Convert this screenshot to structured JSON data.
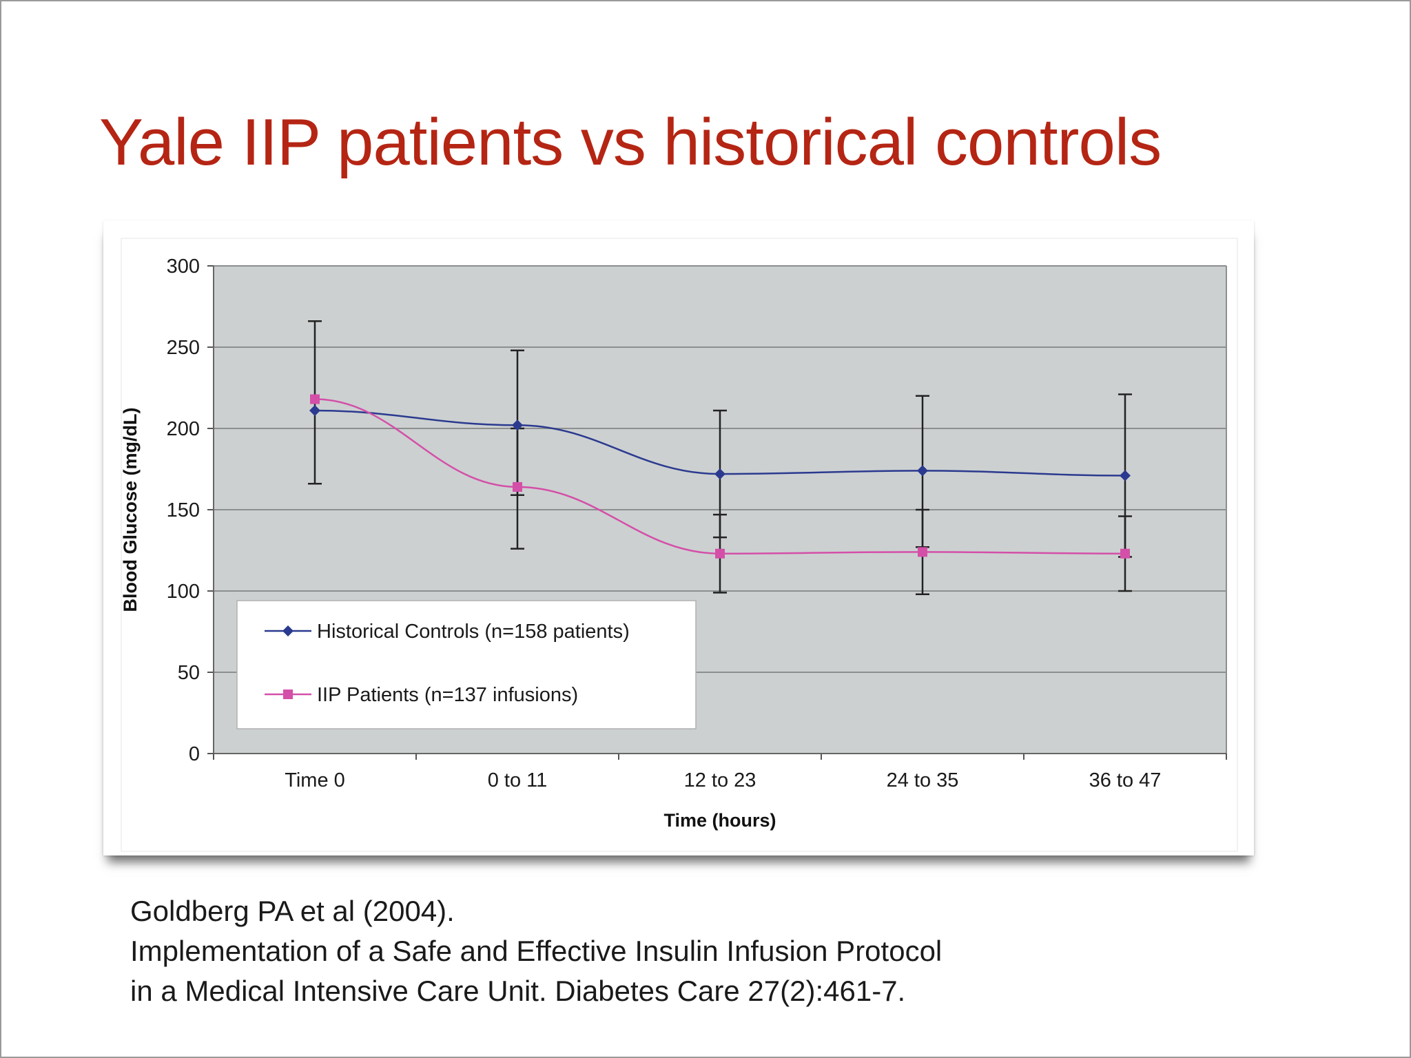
{
  "slide": {
    "title": "Yale IIP patients vs historical controls",
    "citation": [
      "Goldberg PA et al (2004).",
      "Implementation of a Safe and Effective Insulin Infusion Protocol",
      "in a Medical Intensive Care Unit. Diabetes Care 27(2):461-7."
    ]
  },
  "colors": {
    "title": "#b52514",
    "plot_background": "#ccd0d1",
    "gridline": "#8c8f8f",
    "historical_series": "#2b3a8f",
    "iip_series": "#d44fa8",
    "error_bar": "#222222"
  },
  "chart_data": {
    "type": "line",
    "xlabel": "Time (hours)",
    "ylabel": "Blood Glucose (mg/dL)",
    "categories": [
      "Time 0",
      "0 to 11",
      "12 to 23",
      "24 to 35",
      "36 to 47"
    ],
    "ylim": [
      0,
      300
    ],
    "yticks": [
      0,
      50,
      100,
      150,
      200,
      250,
      300
    ],
    "grid": true,
    "legend_position": "bottom-left",
    "series": [
      {
        "name": "Historical Controls (n=158 patients)",
        "marker": "diamond",
        "color": "#2b3a8f",
        "values": [
          211,
          202,
          172,
          174,
          171
        ],
        "error_bars": [
          [
            166,
            266
          ],
          [
            159,
            248
          ],
          [
            133,
            211
          ],
          [
            127,
            220
          ],
          [
            121,
            221
          ]
        ]
      },
      {
        "name": "IIP Patients (n=137 infusions)",
        "marker": "square",
        "color": "#d44fa8",
        "values": [
          218,
          164,
          123,
          124,
          123
        ],
        "error_bars": [
          [
            218,
            218
          ],
          [
            126,
            200
          ],
          [
            99,
            147
          ],
          [
            98,
            150
          ],
          [
            100,
            146
          ]
        ]
      }
    ]
  }
}
